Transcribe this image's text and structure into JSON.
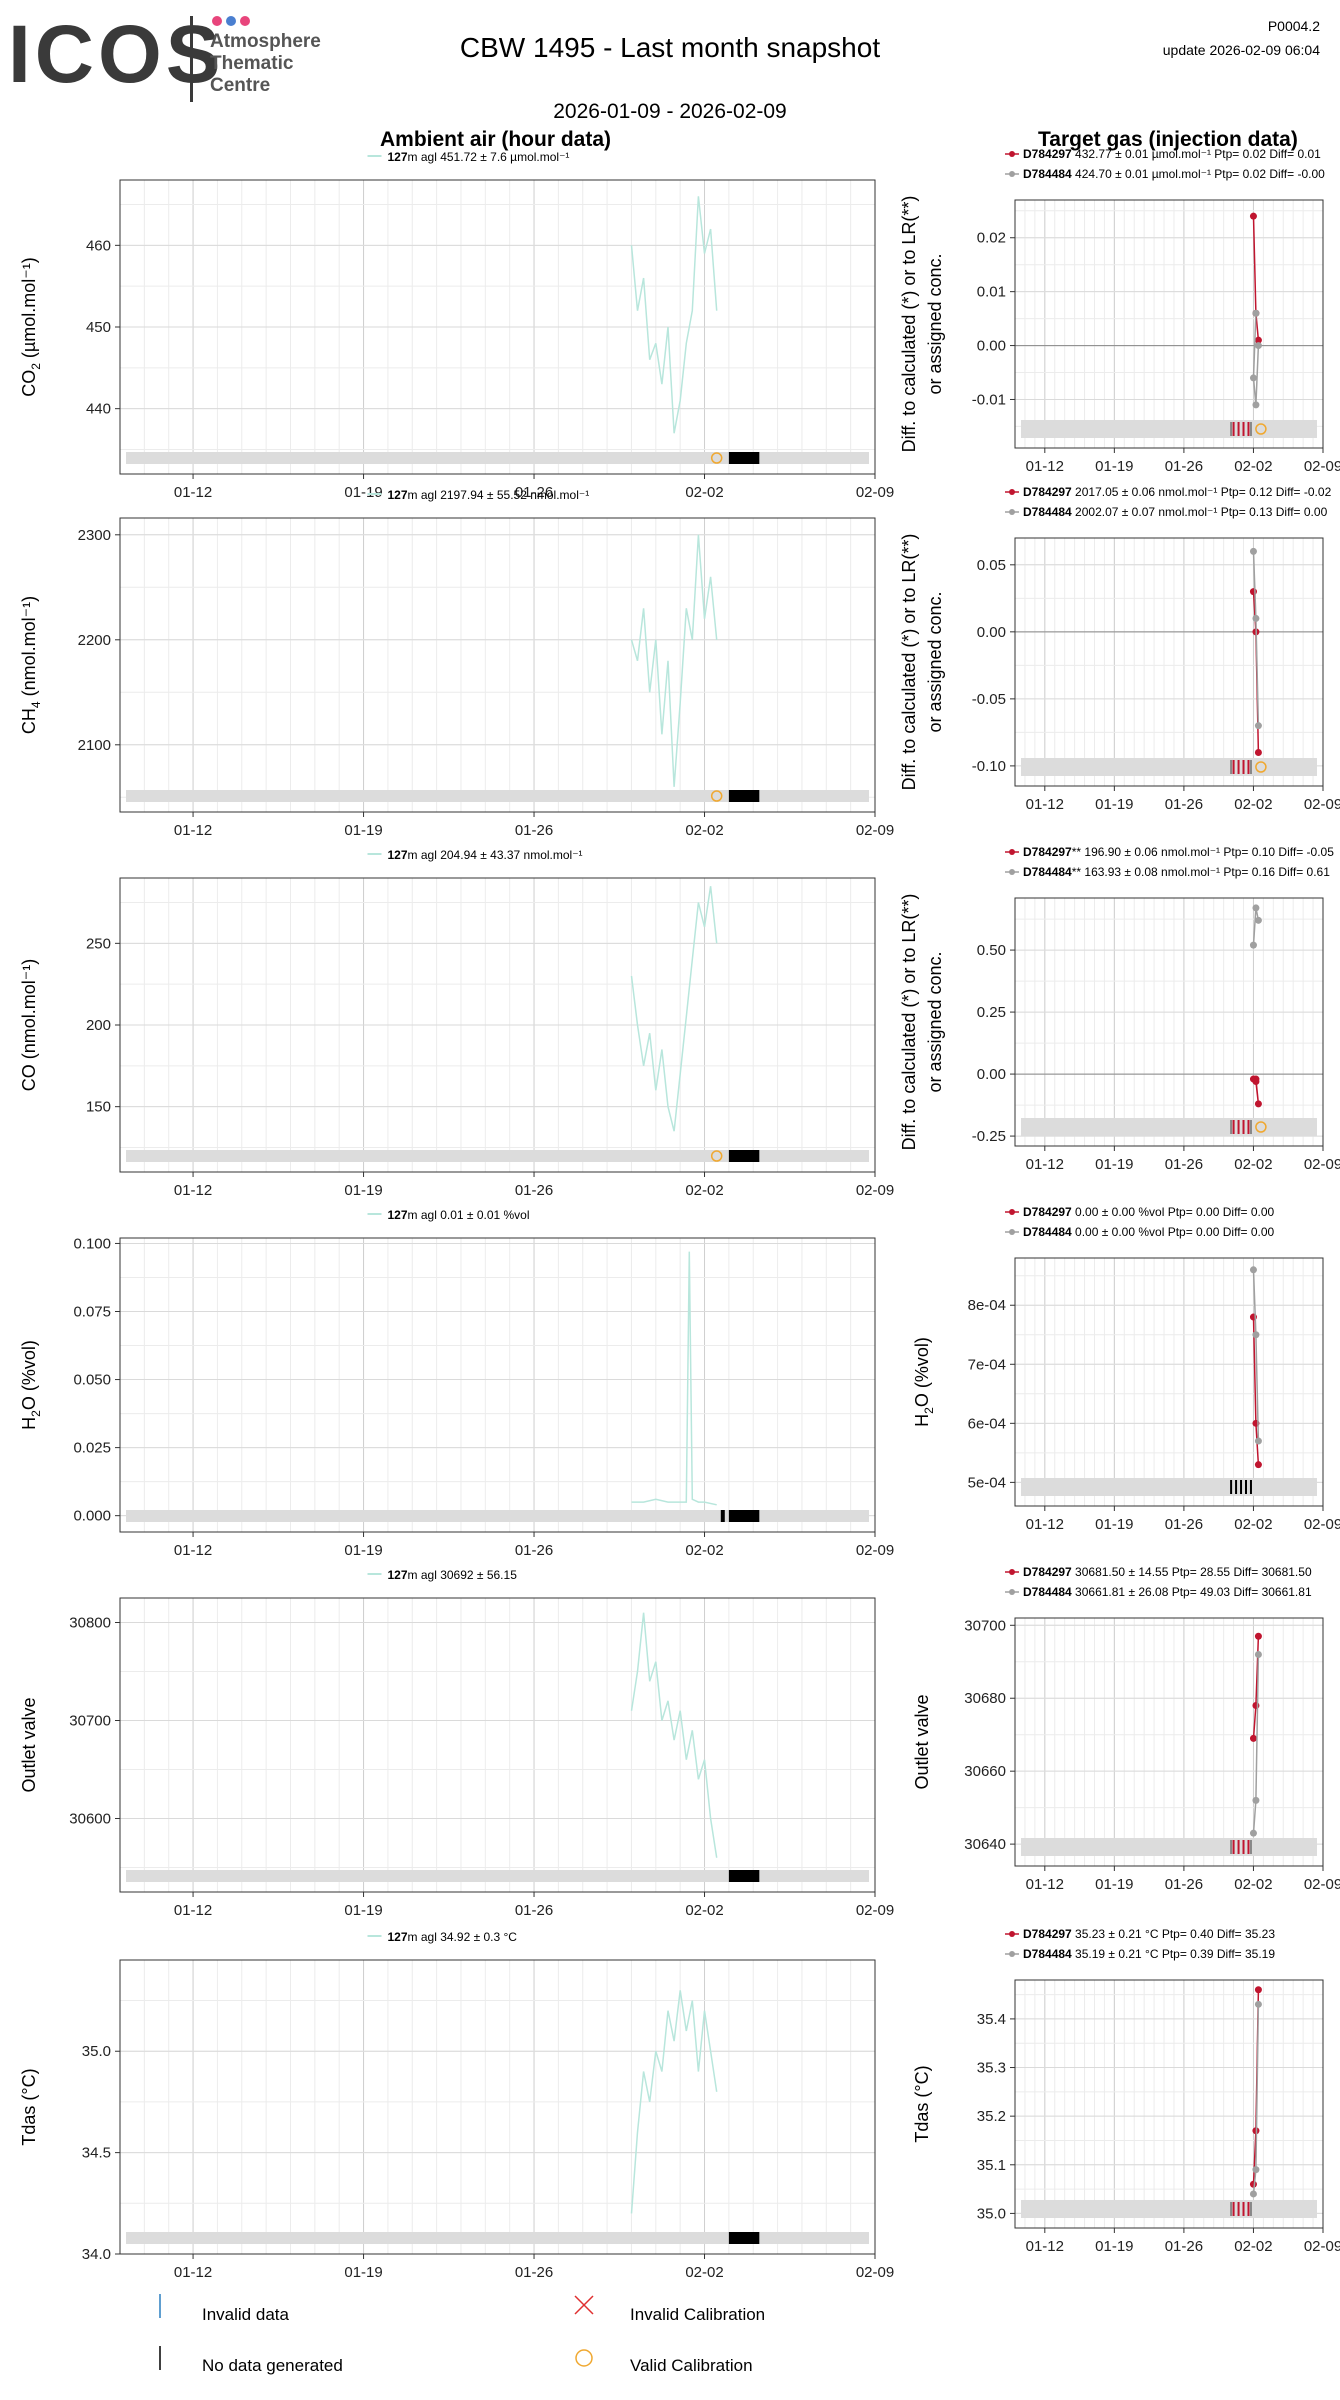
{
  "logo": {
    "text": "ICOS",
    "sub": "Atmosphere\nThematic\nCentre",
    "dot_colors": [
      "#e8457c",
      "#4a7fd0",
      "#e8457c"
    ]
  },
  "header": {
    "title": "CBW 1495 - Last month snapshot",
    "code": "P0004.2",
    "update": "update  2026-02-09 06:04",
    "period": "2026-01-09 - 2026-02-09",
    "left_title": "Ambient air (hour data)",
    "right_title": "Target gas (injection data)"
  },
  "colors": {
    "ambient": "#b8e6dc",
    "d1": "#c0152f",
    "d2": "#a0a0a0",
    "valid": "#f0a830",
    "band": "#dcdcdc",
    "invalid": "#2a7fc0"
  },
  "x_axis": {
    "ticks": [
      "01-12",
      "01-19",
      "01-26",
      "02-02",
      "02-09"
    ],
    "tick_dates": [
      "2026-01-12",
      "2026-01-19",
      "2026-01-26",
      "2026-02-02",
      "2026-02-09"
    ],
    "range": [
      "2026-01-09",
      "2026-02-09"
    ]
  },
  "chart_data": [
    {
      "type": "line",
      "panel": "ambient-co2",
      "ylabel_main": "CO",
      "ylabel_sub": "2",
      "ylabel_rest": " (µmol.mol⁻¹)",
      "legend_bold": "127",
      "legend_rest": "m agl 451.72 ± 7.6 µmol.mol⁻¹",
      "ylim": [
        432,
        468
      ],
      "yticks": [
        440,
        450,
        460
      ],
      "series": [
        {
          "values_x": [
            "2026-01-30T00",
            "2026-01-30T06",
            "2026-01-30T12",
            "2026-01-30T18",
            "2026-01-31T00",
            "2026-01-31T06",
            "2026-01-31T12",
            "2026-01-31T18",
            "2026-02-01T00",
            "2026-02-01T06",
            "2026-02-01T12",
            "2026-02-01T18",
            "2026-02-02T00",
            "2026-02-02T06",
            "2026-02-02T12"
          ],
          "values_y": [
            460,
            452,
            456,
            446,
            448,
            443,
            450,
            437,
            441,
            448,
            452,
            466,
            459,
            462,
            452
          ]
        }
      ],
      "valid_cal": [
        "2026-02-02T12"
      ],
      "no_data": [
        "2026-02-03T00",
        "2026-02-04T06"
      ]
    },
    {
      "type": "line",
      "panel": "ambient-ch4",
      "ylabel_main": "CH",
      "ylabel_sub": "4",
      "ylabel_rest": " (nmol.mol⁻¹)",
      "legend_bold": "127",
      "legend_rest": "m agl 2197.94 ± 55.52 nmol.mol⁻¹",
      "ylim": [
        2036,
        2316
      ],
      "yticks": [
        2100,
        2200,
        2300
      ],
      "series": [
        {
          "values_x": [
            "2026-01-30T00",
            "2026-01-30T06",
            "2026-01-30T12",
            "2026-01-30T18",
            "2026-01-31T00",
            "2026-01-31T06",
            "2026-01-31T12",
            "2026-01-31T18",
            "2026-02-01T00",
            "2026-02-01T06",
            "2026-02-01T12",
            "2026-02-01T18",
            "2026-02-02T00",
            "2026-02-02T06",
            "2026-02-02T12"
          ],
          "values_y": [
            2200,
            2180,
            2230,
            2150,
            2200,
            2110,
            2180,
            2060,
            2140,
            2230,
            2200,
            2300,
            2220,
            2260,
            2200
          ]
        }
      ],
      "valid_cal": [
        "2026-02-02T12"
      ],
      "no_data": [
        "2026-02-03T00",
        "2026-02-04T06"
      ]
    },
    {
      "type": "line",
      "panel": "ambient-co",
      "ylabel_main": "CO",
      "ylabel_sub": "",
      "ylabel_rest": " (nmol.mol⁻¹)",
      "legend_bold": "127",
      "legend_rest": "m agl 204.94 ± 43.37 nmol.mol⁻¹",
      "ylim": [
        110,
        290
      ],
      "yticks": [
        150,
        200,
        250
      ],
      "series": [
        {
          "values_x": [
            "2026-01-30T00",
            "2026-01-30T06",
            "2026-01-30T12",
            "2026-01-30T18",
            "2026-01-31T00",
            "2026-01-31T06",
            "2026-01-31T12",
            "2026-01-31T18",
            "2026-02-01T00",
            "2026-02-01T06",
            "2026-02-01T12",
            "2026-02-01T18",
            "2026-02-02T00",
            "2026-02-02T06",
            "2026-02-02T12"
          ],
          "values_y": [
            230,
            200,
            175,
            195,
            160,
            185,
            150,
            135,
            170,
            205,
            240,
            275,
            260,
            285,
            250
          ]
        }
      ],
      "valid_cal": [
        "2026-02-02T12"
      ],
      "no_data": [
        "2026-02-03T00",
        "2026-02-04T06"
      ]
    },
    {
      "type": "line",
      "panel": "ambient-h2o",
      "ylabel_main": "H",
      "ylabel_sub": "2",
      "ylabel_rest": "O (%vol)",
      "legend_bold": "127",
      "legend_rest": "m agl 0.01 ± 0.01 %vol",
      "ylim": [
        -0.006,
        0.102
      ],
      "yticks": [
        0.0,
        0.025,
        0.05,
        0.075,
        0.1
      ],
      "ytick_labels": [
        "0.000",
        "0.025",
        "0.050",
        "0.075",
        "0.100"
      ],
      "series": [
        {
          "values_x": [
            "2026-01-30T00",
            "2026-01-30T12",
            "2026-01-31T00",
            "2026-01-31T12",
            "2026-02-01T00",
            "2026-02-01T06",
            "2026-02-01T09",
            "2026-02-01T12",
            "2026-02-01T18",
            "2026-02-02T00",
            "2026-02-02T12"
          ],
          "values_y": [
            0.005,
            0.005,
            0.006,
            0.005,
            0.005,
            0.005,
            0.097,
            0.006,
            0.005,
            0.005,
            0.004
          ]
        }
      ],
      "invalid": [
        "2026-02-02T18"
      ],
      "no_data": [
        "2026-02-03T00",
        "2026-02-04T06"
      ]
    },
    {
      "type": "line",
      "panel": "ambient-outlet",
      "ylabel_main": "Outlet valve",
      "ylabel_sub": "",
      "ylabel_rest": "",
      "legend_bold": "127",
      "legend_rest": "m agl 30692 ± 56.15",
      "ylim": [
        30525,
        30825
      ],
      "yticks": [
        30600,
        30700,
        30800
      ],
      "series": [
        {
          "values_x": [
            "2026-01-30T00",
            "2026-01-30T06",
            "2026-01-30T12",
            "2026-01-30T18",
            "2026-01-31T00",
            "2026-01-31T06",
            "2026-01-31T12",
            "2026-01-31T18",
            "2026-02-01T00",
            "2026-02-01T06",
            "2026-02-01T12",
            "2026-02-01T18",
            "2026-02-02T00",
            "2026-02-02T06",
            "2026-02-02T12"
          ],
          "values_y": [
            30710,
            30750,
            30810,
            30740,
            30760,
            30700,
            30720,
            30680,
            30710,
            30660,
            30690,
            30640,
            30660,
            30600,
            30560
          ]
        }
      ],
      "no_data": [
        "2026-02-03T00",
        "2026-02-04T06"
      ]
    },
    {
      "type": "line",
      "panel": "ambient-tdas",
      "ylabel_main": "Tdas (°C)",
      "ylabel_sub": "",
      "ylabel_rest": "",
      "legend_bold": "127",
      "legend_rest": "m agl 34.92 ± 0.3 °C",
      "ylim": [
        34.0,
        35.45
      ],
      "yticks": [
        34.0,
        34.5,
        35.0
      ],
      "ytick_labels": [
        "34.0",
        "34.5",
        "35.0"
      ],
      "series": [
        {
          "values_x": [
            "2026-01-30T00",
            "2026-01-30T06",
            "2026-01-30T12",
            "2026-01-30T18",
            "2026-01-31T00",
            "2026-01-31T06",
            "2026-01-31T12",
            "2026-01-31T18",
            "2026-02-01T00",
            "2026-02-01T06",
            "2026-02-01T12",
            "2026-02-01T18",
            "2026-02-02T00",
            "2026-02-02T06",
            "2026-02-02T12"
          ],
          "values_y": [
            34.2,
            34.6,
            34.9,
            34.75,
            35.0,
            34.9,
            35.2,
            35.05,
            35.3,
            35.1,
            35.25,
            34.9,
            35.2,
            35.0,
            34.8
          ]
        }
      ],
      "no_data": [
        "2026-02-03T00",
        "2026-02-04T06"
      ]
    },
    {
      "type": "scatter",
      "panel": "target-co2",
      "ylabel_lines": [
        "Diff. to calculated (*) or to LR(**)",
        "or assigned conc."
      ],
      "legend": [
        {
          "bold": "D784297",
          "rest": " 432.77 ± 0.01 µmol.mol⁻¹ Ptp= 0.02 Diff= 0.01"
        },
        {
          "bold": "D784484",
          "rest": " 424.70 ± 0.01 µmol.mol⁻¹ Ptp= 0.02 Diff= -0.00"
        }
      ],
      "ylim": [
        -0.019,
        0.027
      ],
      "yticks": [
        -0.01,
        0.0,
        0.01,
        0.02
      ],
      "ytick_labels": [
        "-0.01",
        "0.00",
        "0.01",
        "0.02"
      ],
      "zero_line": true,
      "series": [
        {
          "name": "D784297",
          "x": [
            "2026-02-02T00",
            "2026-02-02T06",
            "2026-02-02T12"
          ],
          "y": [
            0.024,
            0.006,
            0.001
          ]
        },
        {
          "name": "D784484",
          "x": [
            "2026-02-02T06",
            "2026-02-02T00",
            "2026-02-02T06",
            "2026-02-02T12"
          ],
          "y": [
            0.006,
            -0.006,
            -0.011,
            0.0
          ]
        }
      ],
      "valid_cal": [
        "2026-02-02T18"
      ],
      "invalid_ticks": {
        "red": [
          "2026-01-31",
          "2026-01-31T12",
          "2026-02-01",
          "2026-02-01T12"
        ],
        "grey": [
          "2026-01-30T18",
          "2026-02-01T18"
        ]
      }
    },
    {
      "type": "scatter",
      "panel": "target-ch4",
      "ylabel_lines": [
        "Diff. to calculated (*) or to LR(**)",
        "or assigned conc."
      ],
      "legend": [
        {
          "bold": "D784297",
          "rest": " 2017.05 ± 0.06 nmol.mol⁻¹ Ptp= 0.12 Diff= -0.02"
        },
        {
          "bold": "D784484",
          "rest": " 2002.07 ± 0.07 nmol.mol⁻¹ Ptp= 0.13 Diff= 0.00"
        }
      ],
      "ylim": [
        -0.115,
        0.07
      ],
      "yticks": [
        -0.1,
        -0.05,
        0.0,
        0.05
      ],
      "ytick_labels": [
        "-0.10",
        "-0.05",
        "0.00",
        "0.05"
      ],
      "zero_line": true,
      "series": [
        {
          "name": "D784297",
          "x": [
            "2026-02-02T00",
            "2026-02-02T06",
            "2026-02-02T12"
          ],
          "y": [
            0.03,
            0.0,
            -0.09
          ]
        },
        {
          "name": "D784484",
          "x": [
            "2026-02-02T00",
            "2026-02-02T06",
            "2026-02-02T12"
          ],
          "y": [
            0.06,
            0.01,
            -0.07
          ]
        }
      ],
      "valid_cal": [
        "2026-02-02T18"
      ],
      "invalid_ticks": {
        "red": [
          "2026-01-31",
          "2026-01-31T12",
          "2026-02-01",
          "2026-02-01T12"
        ],
        "grey": [
          "2026-01-30T18",
          "2026-02-01T18"
        ]
      }
    },
    {
      "type": "scatter",
      "panel": "target-co",
      "ylabel_lines": [
        "Diff. to calculated (*) or to LR(**)",
        "or assigned conc."
      ],
      "legend": [
        {
          "bold": "D784297",
          "rest": "** 196.90 ± 0.06 nmol.mol⁻¹ Ptp= 0.10 Diff= -0.05"
        },
        {
          "bold": "D784484",
          "rest": "** 163.93 ± 0.08 nmol.mol⁻¹ Ptp= 0.16 Diff= 0.61"
        }
      ],
      "ylim": [
        -0.29,
        0.71
      ],
      "yticks": [
        -0.25,
        0.0,
        0.25,
        0.5
      ],
      "ytick_labels": [
        "-0.25",
        "0.00",
        "0.25",
        "0.50"
      ],
      "zero_line": true,
      "series": [
        {
          "name": "D784297",
          "x": [
            "2026-02-02T00",
            "2026-02-02T06",
            "2026-02-02T12",
            "2026-02-02T06"
          ],
          "y": [
            -0.02,
            -0.02,
            -0.12,
            -0.03
          ]
        },
        {
          "name": "D784484",
          "x": [
            "2026-02-02T00",
            "2026-02-02T06",
            "2026-02-02T12"
          ],
          "y": [
            0.52,
            0.67,
            0.62
          ]
        }
      ],
      "valid_cal": [
        "2026-02-02T18"
      ],
      "invalid_ticks": {
        "red": [
          "2026-01-31",
          "2026-01-31T12",
          "2026-02-01",
          "2026-02-01T12"
        ],
        "grey": [
          "2026-01-30T18",
          "2026-02-01T18"
        ]
      }
    },
    {
      "type": "scatter",
      "panel": "target-h2o",
      "ylabel_main": "H",
      "ylabel_sub": "2",
      "ylabel_rest": "O (%vol)",
      "legend": [
        {
          "bold": "D784297",
          "rest": " 0.00 ± 0.00 %vol Ptp= 0.00 Diff= 0.00"
        },
        {
          "bold": "D784484",
          "rest": " 0.00 ± 0.00 %vol Ptp= 0.00 Diff= 0.00"
        }
      ],
      "ylim": [
        0.00046,
        0.00088
      ],
      "yticks": [
        0.0005,
        0.0006,
        0.0007,
        0.0008
      ],
      "ytick_labels": [
        "5e-04",
        "6e-04",
        "7e-04",
        "8e-04"
      ],
      "series": [
        {
          "name": "D784297",
          "x": [
            "2026-02-02T00",
            "2026-02-02T06",
            "2026-02-02T12"
          ],
          "y": [
            0.00078,
            0.0006,
            0.00053
          ]
        },
        {
          "name": "D784484",
          "x": [
            "2026-02-02T00",
            "2026-02-02T06",
            "2026-02-02T12"
          ],
          "y": [
            0.00086,
            0.00075,
            0.00057
          ]
        }
      ],
      "invalid_ticks": {
        "black": [
          "2026-01-30T18",
          "2026-01-31T06",
          "2026-01-31T18",
          "2026-02-01T06",
          "2026-02-01T18"
        ]
      }
    },
    {
      "type": "scatter",
      "panel": "target-outlet",
      "ylabel_main": "Outlet valve",
      "ylabel_sub": "",
      "ylabel_rest": "",
      "legend": [
        {
          "bold": "D784297",
          "rest": " 30681.50 ± 14.55  Ptp= 28.55 Diff= 30681.50"
        },
        {
          "bold": "D784484",
          "rest": " 30661.81 ± 26.08  Ptp= 49.03 Diff= 30661.81"
        }
      ],
      "ylim": [
        30634,
        30702
      ],
      "yticks": [
        30640,
        30660,
        30680,
        30700
      ],
      "series": [
        {
          "name": "D784297",
          "x": [
            "2026-02-02T00",
            "2026-02-02T06",
            "2026-02-02T12"
          ],
          "y": [
            30669,
            30678,
            30697
          ]
        },
        {
          "name": "D784484",
          "x": [
            "2026-02-02T00",
            "2026-02-02T06",
            "2026-02-02T12"
          ],
          "y": [
            30643,
            30652,
            30692
          ]
        }
      ],
      "invalid_ticks": {
        "red": [
          "2026-01-31",
          "2026-01-31T12",
          "2026-02-01",
          "2026-02-01T12"
        ],
        "grey": [
          "2026-01-30T18",
          "2026-02-01T18"
        ]
      }
    },
    {
      "type": "scatter",
      "panel": "target-tdas",
      "ylabel_main": "Tdas (°C)",
      "ylabel_sub": "",
      "ylabel_rest": "",
      "legend": [
        {
          "bold": "D784297",
          "rest": " 35.23 ± 0.21 °C Ptp= 0.40 Diff= 35.23"
        },
        {
          "bold": "D784484",
          "rest": " 35.19 ± 0.21 °C Ptp= 0.39 Diff= 35.19"
        }
      ],
      "ylim": [
        34.97,
        35.48
      ],
      "yticks": [
        35.0,
        35.1,
        35.2,
        35.3,
        35.4
      ],
      "ytick_labels": [
        "35.0",
        "35.1",
        "35.2",
        "35.3",
        "35.4"
      ],
      "series": [
        {
          "name": "D784297",
          "x": [
            "2026-02-02T00",
            "2026-02-02T06",
            "2026-02-02T12"
          ],
          "y": [
            35.06,
            35.17,
            35.46
          ]
        },
        {
          "name": "D784484",
          "x": [
            "2026-02-02T00",
            "2026-02-02T06",
            "2026-02-02T12"
          ],
          "y": [
            35.04,
            35.09,
            35.43
          ]
        }
      ],
      "invalid_ticks": {
        "red": [
          "2026-01-31",
          "2026-01-31T12",
          "2026-02-01",
          "2026-02-01T12"
        ],
        "grey": [
          "2026-01-30T18",
          "2026-02-01T18"
        ]
      }
    }
  ],
  "bottom_legend": {
    "invalid_data": "Invalid data",
    "no_data": "No data generated",
    "invalid_cal": "Invalid Calibration",
    "valid_cal": "Valid Calibration"
  }
}
